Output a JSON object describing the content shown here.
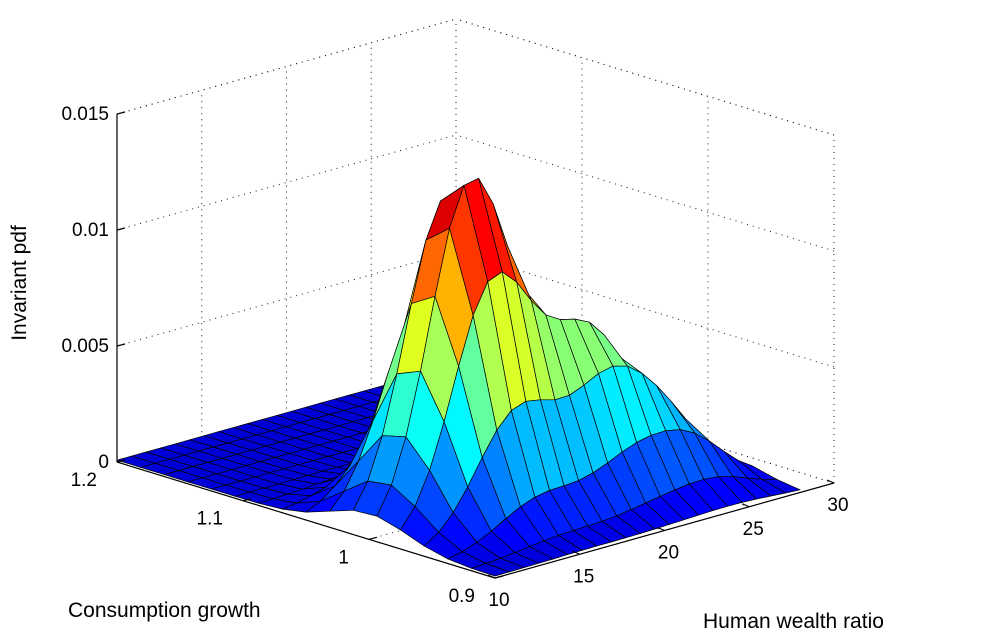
{
  "chart_data": {
    "type": "surface",
    "title": "",
    "xlabel": "Human wealth ratio",
    "ylabel": "Consumption growth",
    "zlabel": "Invariant pdf",
    "x_ticks": [
      10,
      15,
      20,
      25,
      30
    ],
    "x_tick_labels": [
      "10",
      "15",
      "20",
      "25",
      "30"
    ],
    "y_ticks": [
      0.9,
      1.0,
      1.1,
      1.2
    ],
    "y_tick_labels": [
      "0.9",
      "1",
      "1.1",
      "1.2"
    ],
    "z_ticks": [
      0,
      0.005,
      0.01,
      0.015
    ],
    "z_tick_labels": [
      "0",
      "0.005",
      "0.01",
      "0.015"
    ],
    "xlim": [
      10,
      30
    ],
    "ylim": [
      0.9,
      1.2
    ],
    "zlim": [
      0,
      0.015
    ],
    "grid": true,
    "colormap": "jet",
    "surface": {
      "x_range": [
        10,
        28
      ],
      "y_range": [
        0.9,
        1.2
      ],
      "x_count": 22,
      "y_count": 17,
      "peaks": [
        {
          "x": 15.5,
          "y": 1.0,
          "z": 0.0145,
          "sx": 2.4,
          "sy": 0.03
        },
        {
          "x": 21.0,
          "y": 0.975,
          "z": 0.0065,
          "sx": 2.3,
          "sy": 0.026
        },
        {
          "x": 24.5,
          "y": 0.95,
          "z": 0.0022,
          "sx": 2.0,
          "sy": 0.022
        }
      ],
      "floor_background": 8e-05
    }
  }
}
